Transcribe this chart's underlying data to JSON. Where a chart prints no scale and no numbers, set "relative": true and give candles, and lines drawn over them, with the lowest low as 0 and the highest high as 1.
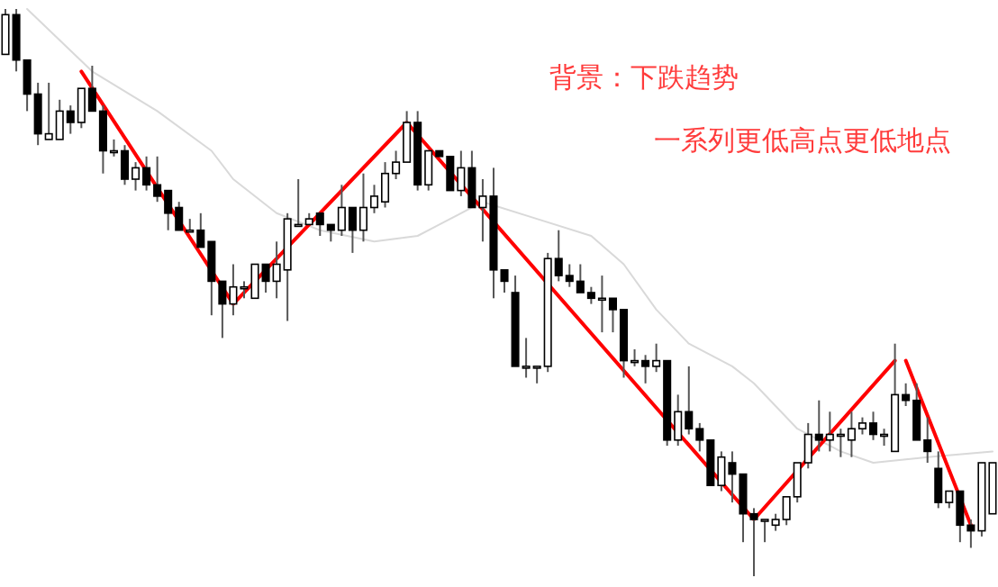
{
  "chart_data": {
    "type": "candlestick",
    "relative": true,
    "categories": [
      null,
      null,
      null,
      null,
      null,
      null,
      null,
      null,
      null,
      null,
      null,
      null,
      null,
      null,
      null,
      null,
      null,
      null,
      null,
      null,
      null,
      null,
      null,
      null,
      null,
      null,
      null,
      null,
      null,
      null,
      null,
      null,
      null,
      null,
      null,
      null,
      null,
      null,
      null,
      null,
      null,
      null,
      null,
      null,
      null,
      null,
      null,
      null,
      null,
      null,
      null,
      null,
      null,
      null,
      null,
      null,
      null,
      null,
      null,
      null,
      null,
      null,
      null,
      null,
      null,
      null,
      null,
      null,
      null,
      null,
      null,
      null,
      null,
      null,
      null,
      null,
      null,
      null,
      null,
      null,
      null,
      null,
      null,
      null,
      null,
      null,
      null,
      null,
      null,
      null,
      null,
      null
    ],
    "ohlc": [
      [
        0.92,
        1.0,
        0.92,
        0.99
      ],
      [
        0.99,
        1.0,
        0.89,
        0.91
      ],
      [
        0.91,
        0.91,
        0.82,
        0.85
      ],
      [
        0.85,
        0.87,
        0.76,
        0.78
      ],
      [
        0.77,
        0.87,
        0.77,
        0.78
      ],
      [
        0.77,
        0.84,
        0.77,
        0.82
      ],
      [
        0.82,
        0.83,
        0.78,
        0.8
      ],
      [
        0.8,
        0.86,
        0.79,
        0.86
      ],
      [
        0.86,
        0.9,
        0.82,
        0.82
      ],
      [
        0.82,
        0.83,
        0.71,
        0.75
      ],
      [
        0.75,
        0.77,
        0.74,
        0.75
      ],
      [
        0.75,
        0.76,
        0.69,
        0.7
      ],
      [
        0.7,
        0.73,
        0.68,
        0.72
      ],
      [
        0.72,
        0.74,
        0.68,
        0.69
      ],
      [
        0.69,
        0.74,
        0.66,
        0.67
      ],
      [
        0.68,
        0.68,
        0.61,
        0.64
      ],
      [
        0.65,
        0.66,
        0.61,
        0.61
      ],
      [
        0.61,
        0.63,
        0.61,
        0.61
      ],
      [
        0.61,
        0.64,
        0.58,
        0.58
      ],
      [
        0.59,
        0.59,
        0.46,
        0.52
      ],
      [
        0.52,
        0.52,
        0.42,
        0.48
      ],
      [
        0.48,
        0.55,
        0.46,
        0.51
      ],
      [
        0.51,
        0.52,
        0.49,
        0.51
      ],
      [
        0.49,
        0.55,
        0.49,
        0.55
      ],
      [
        0.55,
        0.55,
        0.5,
        0.52
      ],
      [
        0.52,
        0.59,
        0.49,
        0.55
      ],
      [
        0.54,
        0.64,
        0.45,
        0.63
      ],
      [
        0.62,
        0.7,
        0.62,
        0.62
      ],
      [
        0.62,
        0.64,
        0.62,
        0.63
      ],
      [
        0.64,
        0.64,
        0.6,
        0.62
      ],
      [
        0.62,
        0.62,
        0.59,
        0.61
      ],
      [
        0.61,
        0.69,
        0.6,
        0.65
      ],
      [
        0.65,
        0.65,
        0.57,
        0.61
      ],
      [
        0.61,
        0.71,
        0.59,
        0.65
      ],
      [
        0.65,
        0.69,
        0.64,
        0.67
      ],
      [
        0.66,
        0.73,
        0.65,
        0.71
      ],
      [
        0.71,
        0.75,
        0.7,
        0.73
      ],
      [
        0.73,
        0.82,
        0.73,
        0.8
      ],
      [
        0.8,
        0.82,
        0.68,
        0.69
      ],
      [
        0.69,
        0.75,
        0.68,
        0.75
      ],
      [
        0.75,
        0.75,
        0.74,
        0.74
      ],
      [
        0.74,
        0.74,
        0.68,
        0.68
      ],
      [
        0.68,
        0.75,
        0.67,
        0.72
      ],
      [
        0.72,
        0.75,
        0.65,
        0.65
      ],
      [
        0.65,
        0.7,
        0.59,
        0.67
      ],
      [
        0.67,
        0.72,
        0.49,
        0.54
      ],
      [
        0.54,
        0.54,
        0.5,
        0.52
      ],
      [
        0.5,
        0.53,
        0.37,
        0.37
      ],
      [
        0.37,
        0.42,
        0.35,
        0.37
      ],
      [
        0.37,
        0.37,
        0.34,
        0.37
      ],
      [
        0.37,
        0.57,
        0.36,
        0.56
      ],
      [
        0.56,
        0.61,
        0.52,
        0.53
      ],
      [
        0.53,
        0.55,
        0.51,
        0.52
      ],
      [
        0.52,
        0.55,
        0.5,
        0.5
      ],
      [
        0.5,
        0.51,
        0.48,
        0.49
      ],
      [
        0.49,
        0.53,
        0.43,
        0.49
      ],
      [
        0.49,
        0.49,
        0.43,
        0.47
      ],
      [
        0.47,
        0.47,
        0.35,
        0.38
      ],
      [
        0.38,
        0.4,
        0.37,
        0.38
      ],
      [
        0.38,
        0.39,
        0.34,
        0.37
      ],
      [
        0.37,
        0.41,
        0.36,
        0.38
      ],
      [
        0.38,
        0.38,
        0.23,
        0.24
      ],
      [
        0.24,
        0.32,
        0.23,
        0.29
      ],
      [
        0.29,
        0.37,
        0.25,
        0.26
      ],
      [
        0.26,
        0.27,
        0.22,
        0.24
      ],
      [
        0.24,
        0.24,
        0.16,
        0.16
      ],
      [
        0.16,
        0.22,
        0.15,
        0.21
      ],
      [
        0.2,
        0.22,
        0.13,
        0.18
      ],
      [
        0.18,
        0.18,
        0.06,
        0.11
      ],
      [
        0.11,
        0.12,
        0.0,
        0.1
      ],
      [
        0.1,
        0.1,
        0.06,
        0.1
      ],
      [
        0.09,
        0.11,
        0.08,
        0.1
      ],
      [
        0.1,
        0.14,
        0.09,
        0.14
      ],
      [
        0.14,
        0.2,
        0.13,
        0.2
      ],
      [
        0.2,
        0.27,
        0.19,
        0.25
      ],
      [
        0.25,
        0.31,
        0.22,
        0.24
      ],
      [
        0.24,
        0.29,
        0.22,
        0.25
      ],
      [
        0.25,
        0.26,
        0.21,
        0.25
      ],
      [
        0.24,
        0.29,
        0.21,
        0.26
      ],
      [
        0.26,
        0.28,
        0.25,
        0.27
      ],
      [
        0.27,
        0.29,
        0.24,
        0.25
      ],
      [
        0.25,
        0.26,
        0.23,
        0.25
      ],
      [
        0.22,
        0.41,
        0.22,
        0.32
      ],
      [
        0.32,
        0.34,
        0.3,
        0.31
      ],
      [
        0.31,
        0.34,
        0.24,
        0.24
      ],
      [
        0.24,
        0.28,
        0.2,
        0.22
      ],
      [
        0.19,
        0.22,
        0.12,
        0.13
      ],
      [
        0.13,
        0.15,
        0.12,
        0.15
      ],
      [
        0.15,
        0.15,
        0.06,
        0.09
      ],
      [
        0.09,
        0.1,
        0.05,
        0.08
      ],
      [
        0.08,
        0.2,
        0.07,
        0.2
      ],
      [
        0.11,
        0.2,
        0.11,
        0.2
      ]
    ],
    "series": [
      {
        "type": "line",
        "color": "#d9d9d9",
        "values": [
          null,
          null,
          1.0,
          null,
          null,
          null,
          null,
          null,
          0.89,
          null,
          null,
          null,
          null,
          null,
          0.82,
          null,
          null,
          null,
          null,
          0.75,
          null,
          0.7,
          null,
          null,
          null,
          0.64,
          null,
          null,
          null,
          0.61,
          null,
          null,
          null,
          null,
          0.59,
          null,
          null,
          null,
          0.6,
          null,
          null,
          0.63,
          null,
          null,
          0.66,
          null,
          null,
          null,
          null,
          0.63,
          null,
          null,
          null,
          null,
          0.6,
          null,
          null,
          0.55,
          null,
          null,
          0.47,
          null,
          null,
          0.41,
          null,
          null,
          null,
          0.37,
          null,
          0.34,
          null,
          null,
          null,
          0.26,
          null,
          null,
          null,
          0.22,
          null,
          null,
          0.2,
          null,
          null,
          null,
          null,
          0.21,
          null,
          null,
          null,
          null,
          null,
          0.22
        ]
      },
      {
        "type": "line",
        "color": "#ff0000",
        "values": [
          null,
          null,
          null,
          null,
          null,
          null,
          null,
          0.89,
          null,
          null,
          null,
          null,
          null,
          null,
          null,
          null,
          null,
          null,
          null,
          null,
          null,
          0.48,
          null,
          null,
          null,
          null,
          null,
          null,
          null,
          null,
          null,
          null,
          null,
          null,
          null,
          null,
          null,
          0.8,
          null,
          null,
          null,
          null,
          null,
          null,
          null,
          null,
          null,
          null,
          null,
          null,
          null,
          null,
          null,
          null,
          null,
          null,
          null,
          null,
          null,
          null,
          null,
          null,
          null,
          null,
          null,
          null,
          null,
          null,
          null,
          0.1,
          null,
          null,
          null,
          null,
          null,
          null,
          null,
          null,
          null,
          null,
          null,
          null,
          0.38,
          null,
          null,
          null,
          null,
          null,
          null,
          null,
          null,
          null
        ]
      },
      {
        "type": "line",
        "color": "#ff0000",
        "values": [
          null,
          null,
          null,
          null,
          null,
          null,
          null,
          null,
          null,
          null,
          null,
          null,
          null,
          null,
          null,
          null,
          null,
          null,
          null,
          null,
          null,
          null,
          null,
          null,
          null,
          null,
          null,
          null,
          null,
          null,
          null,
          null,
          null,
          null,
          null,
          null,
          null,
          null,
          null,
          null,
          null,
          null,
          null,
          null,
          null,
          null,
          null,
          null,
          null,
          null,
          null,
          null,
          null,
          null,
          null,
          null,
          null,
          null,
          null,
          null,
          null,
          null,
          null,
          null,
          null,
          null,
          null,
          null,
          null,
          null,
          null,
          null,
          null,
          null,
          null,
          null,
          null,
          null,
          null,
          null,
          null,
          null,
          null,
          0.38,
          null,
          null,
          null,
          null,
          null,
          0.09,
          null,
          null
        ]
      }
    ],
    "annotations": [
      "背景：下跌趋势",
      "一系列更低高点更低地点"
    ]
  }
}
